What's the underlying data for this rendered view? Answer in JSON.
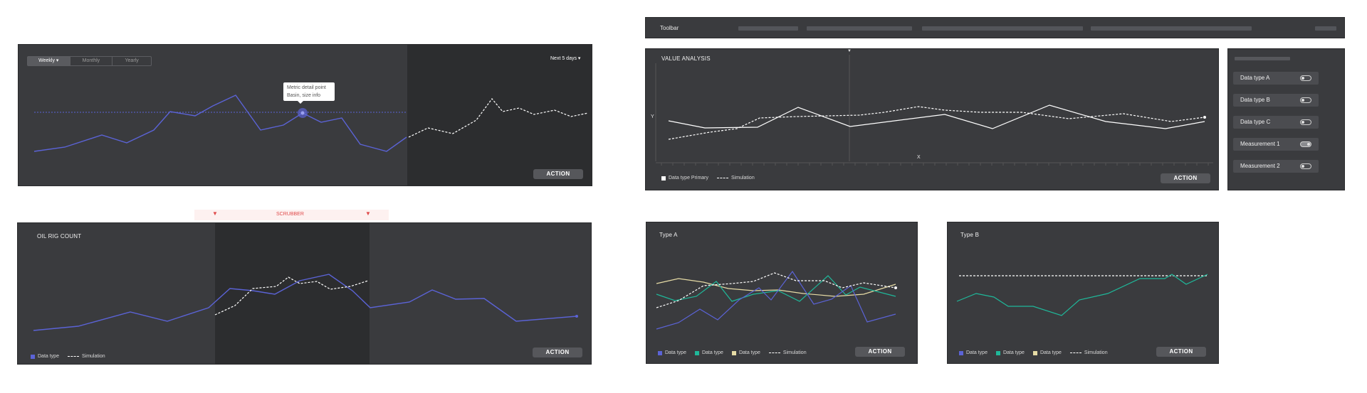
{
  "panel1": {
    "segmented": [
      "Weekly",
      "Monthly",
      "Yearly"
    ],
    "active_segment": "Weekly",
    "range_dropdown": "Next 5 days",
    "tooltip": {
      "line1": "Metric detail point",
      "line2": "Basin, size info"
    },
    "action": "ACTION"
  },
  "scrubber": {
    "label": "SCRUBBER"
  },
  "panel2": {
    "title": "OIL RIG COUNT",
    "legend": {
      "series1": "Data type",
      "series2": "Simulation"
    },
    "action": "ACTION"
  },
  "toolbar": {
    "label": "Toolbar"
  },
  "value_panel": {
    "title": "VALUE ANALYSIS",
    "y_label": "Y",
    "x_label": "X",
    "legend": {
      "series1": "Data type Primary",
      "series2": "Simulation"
    },
    "action": "ACTION"
  },
  "sidebar": {
    "items": [
      {
        "label": "Data type  A",
        "on": false
      },
      {
        "label": "Data type  B",
        "on": false
      },
      {
        "label": "Data type  C",
        "on": false
      },
      {
        "label": "Measurement 1",
        "on": true
      },
      {
        "label": "Measurement 2",
        "on": false
      }
    ]
  },
  "typeA": {
    "title": "Type A",
    "legend": [
      "Data type",
      "Data type",
      "Data type",
      "Simulation"
    ],
    "action": "ACTION"
  },
  "typeB": {
    "title": "Type B",
    "legend": [
      "Data type",
      "Data type",
      "Data type",
      "Simulation"
    ],
    "action": "ACTION"
  },
  "colors": {
    "accent_blue": "#5b63d6",
    "green": "#1fb89a",
    "cream": "#e7dca6",
    "scrubber_red": "#e04a4a",
    "scrubber_bg": "#fdf1f0"
  }
}
